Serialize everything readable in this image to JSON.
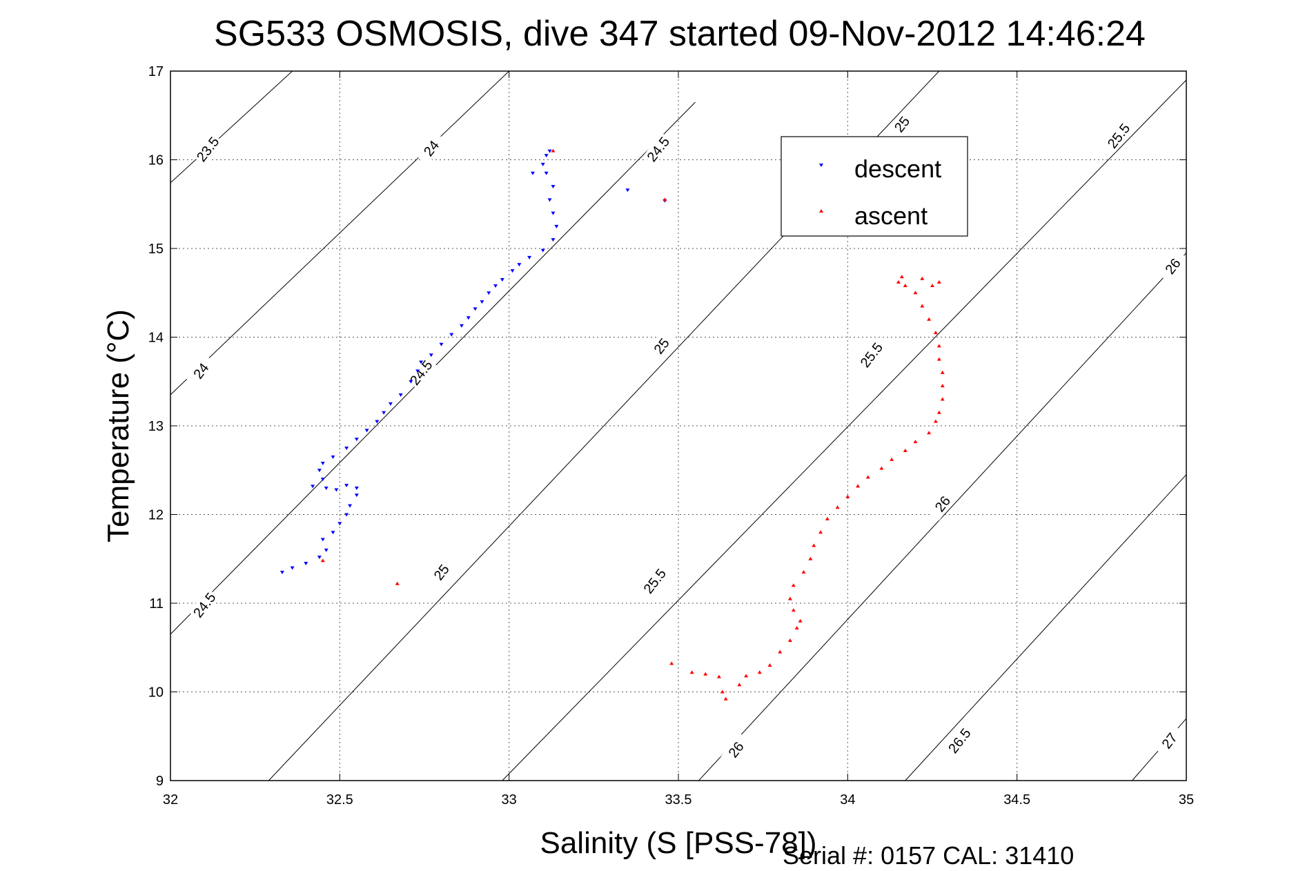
{
  "chart_data": {
    "type": "scatter",
    "title": "SG533 OSMOSIS, dive 347 started 09-Nov-2012 14:46:24",
    "xlabel": "Salinity (S [PSS-78])",
    "ylabel": "Temperature (°C)",
    "xlim": [
      32,
      35
    ],
    "ylim": [
      9,
      17
    ],
    "xticks": [
      32,
      32.5,
      33,
      33.5,
      34,
      34.5,
      35
    ],
    "xtick_labels": [
      "32",
      "32.5",
      "33",
      "33.5",
      "34",
      "34.5",
      "35"
    ],
    "yticks": [
      9,
      10,
      11,
      12,
      13,
      14,
      15,
      16,
      17
    ],
    "ytick_labels": [
      "9",
      "10",
      "11",
      "12",
      "13",
      "14",
      "15",
      "16",
      "17"
    ],
    "grid": true,
    "legend": {
      "placement": "top-right",
      "entries": [
        "descent",
        "ascent"
      ]
    },
    "series": [
      {
        "name": "descent",
        "color": "#0000ff",
        "marker": "triangle-down",
        "points": [
          [
            32.33,
            11.35
          ],
          [
            32.36,
            11.4
          ],
          [
            32.4,
            11.45
          ],
          [
            32.44,
            11.52
          ],
          [
            32.46,
            11.6
          ],
          [
            32.45,
            11.72
          ],
          [
            32.48,
            11.8
          ],
          [
            32.5,
            11.9
          ],
          [
            32.52,
            12.0
          ],
          [
            32.53,
            12.1
          ],
          [
            32.55,
            12.22
          ],
          [
            32.55,
            12.3
          ],
          [
            32.52,
            12.33
          ],
          [
            32.49,
            12.28
          ],
          [
            32.46,
            12.3
          ],
          [
            32.42,
            12.32
          ],
          [
            32.45,
            12.4
          ],
          [
            32.44,
            12.5
          ],
          [
            32.45,
            12.58
          ],
          [
            32.48,
            12.65
          ],
          [
            32.52,
            12.75
          ],
          [
            32.55,
            12.85
          ],
          [
            32.58,
            12.95
          ],
          [
            32.61,
            13.05
          ],
          [
            32.63,
            13.15
          ],
          [
            32.65,
            13.25
          ],
          [
            32.68,
            13.35
          ],
          [
            32.71,
            13.5
          ],
          [
            32.73,
            13.62
          ],
          [
            32.74,
            13.72
          ],
          [
            32.77,
            13.8
          ],
          [
            32.8,
            13.92
          ],
          [
            32.83,
            14.03
          ],
          [
            32.86,
            14.13
          ],
          [
            32.88,
            14.22
          ],
          [
            32.9,
            14.32
          ],
          [
            32.92,
            14.4
          ],
          [
            32.94,
            14.5
          ],
          [
            32.96,
            14.58
          ],
          [
            32.98,
            14.65
          ],
          [
            33.01,
            14.75
          ],
          [
            33.03,
            14.82
          ],
          [
            33.06,
            14.9
          ],
          [
            33.1,
            14.98
          ],
          [
            33.13,
            15.1
          ],
          [
            33.14,
            15.25
          ],
          [
            33.13,
            15.4
          ],
          [
            33.12,
            15.55
          ],
          [
            33.13,
            15.7
          ],
          [
            33.11,
            15.85
          ],
          [
            33.07,
            15.85
          ],
          [
            33.1,
            15.95
          ],
          [
            33.11,
            16.05
          ],
          [
            33.12,
            16.1
          ],
          [
            33.35,
            15.66
          ],
          [
            33.46,
            15.54
          ]
        ]
      },
      {
        "name": "ascent",
        "color": "#ff0000",
        "marker": "triangle-up",
        "points": [
          [
            32.45,
            11.48
          ],
          [
            32.67,
            11.22
          ],
          [
            33.13,
            16.1
          ],
          [
            33.46,
            15.55
          ],
          [
            33.64,
            9.92
          ],
          [
            33.63,
            10.0
          ],
          [
            33.68,
            10.08
          ],
          [
            33.62,
            10.17
          ],
          [
            33.54,
            10.22
          ],
          [
            33.48,
            10.32
          ],
          [
            33.58,
            10.2
          ],
          [
            33.7,
            10.18
          ],
          [
            33.74,
            10.22
          ],
          [
            33.77,
            10.3
          ],
          [
            33.8,
            10.45
          ],
          [
            33.83,
            10.58
          ],
          [
            33.85,
            10.72
          ],
          [
            33.86,
            10.8
          ],
          [
            33.84,
            10.92
          ],
          [
            33.83,
            11.05
          ],
          [
            33.84,
            11.2
          ],
          [
            33.87,
            11.35
          ],
          [
            33.89,
            11.5
          ],
          [
            33.9,
            11.65
          ],
          [
            33.92,
            11.8
          ],
          [
            33.94,
            11.95
          ],
          [
            33.97,
            12.08
          ],
          [
            34.0,
            12.2
          ],
          [
            34.03,
            12.32
          ],
          [
            34.06,
            12.42
          ],
          [
            34.1,
            12.52
          ],
          [
            34.13,
            12.62
          ],
          [
            34.17,
            12.72
          ],
          [
            34.2,
            12.82
          ],
          [
            34.24,
            12.92
          ],
          [
            34.26,
            13.05
          ],
          [
            34.27,
            13.15
          ],
          [
            34.28,
            13.3
          ],
          [
            34.28,
            13.45
          ],
          [
            34.28,
            13.6
          ],
          [
            34.27,
            13.75
          ],
          [
            34.27,
            13.9
          ],
          [
            34.26,
            14.05
          ],
          [
            34.24,
            14.2
          ],
          [
            34.22,
            14.35
          ],
          [
            34.2,
            14.5
          ],
          [
            34.17,
            14.58
          ],
          [
            34.15,
            14.62
          ],
          [
            34.16,
            14.68
          ],
          [
            34.22,
            14.66
          ],
          [
            34.27,
            14.62
          ],
          [
            34.25,
            14.58
          ]
        ]
      }
    ],
    "contours": [
      {
        "label": "23.5",
        "line": [
          [
            32.0,
            15.74
          ],
          [
            32.36,
            17.0
          ]
        ],
        "label_pos": [
          32.11,
          16.12
        ]
      },
      {
        "label": "24",
        "line": [
          [
            32.0,
            13.35
          ],
          [
            33.0,
            17.0
          ]
        ],
        "label_pos": [
          32.77,
          16.13
        ]
      },
      {
        "label": "24",
        "label_pos": [
          32.09,
          13.62
        ]
      },
      {
        "label": "24.5",
        "line": [
          [
            32.0,
            10.65
          ],
          [
            33.55,
            16.65
          ]
        ],
        "label_pos": [
          32.1,
          10.98
        ]
      },
      {
        "label": "24.5",
        "label_pos": [
          32.74,
          13.6
        ]
      },
      {
        "label": "24.5",
        "label_pos": [
          33.44,
          16.12
        ]
      },
      {
        "label": "25",
        "line": [
          [
            32.29,
            9.0
          ],
          [
            34.27,
            17.0
          ]
        ],
        "label_pos": [
          32.8,
          11.35
        ]
      },
      {
        "label": "25",
        "label_pos": [
          33.45,
          13.9
        ]
      },
      {
        "label": "25",
        "label_pos": [
          34.16,
          16.4
        ]
      },
      {
        "label": "25.5",
        "line": [
          [
            32.98,
            9.0
          ],
          [
            35.0,
            16.9
          ]
        ],
        "label_pos": [
          33.43,
          11.25
        ]
      },
      {
        "label": "25.5",
        "label_pos": [
          34.07,
          13.8
        ]
      },
      {
        "label": "25.5",
        "label_pos": [
          34.8,
          16.27
        ]
      },
      {
        "label": "26",
        "line": [
          [
            33.56,
            9.0
          ],
          [
            35.0,
            14.95
          ]
        ],
        "label_pos": [
          33.67,
          9.35
        ]
      },
      {
        "label": "26",
        "label_pos": [
          34.28,
          12.12
        ]
      },
      {
        "label": "26",
        "label_pos": [
          34.96,
          14.8
        ]
      },
      {
        "label": "26.5",
        "line": [
          [
            34.17,
            9.0
          ],
          [
            35.0,
            12.45
          ]
        ],
        "label_pos": [
          34.33,
          9.45
        ]
      },
      {
        "label": "27",
        "line": [
          [
            34.84,
            9.0
          ],
          [
            35.0,
            9.7
          ]
        ],
        "label_pos": [
          34.95,
          9.45
        ]
      }
    ],
    "footer": "Serial #: 0157  CAL: 31410"
  }
}
